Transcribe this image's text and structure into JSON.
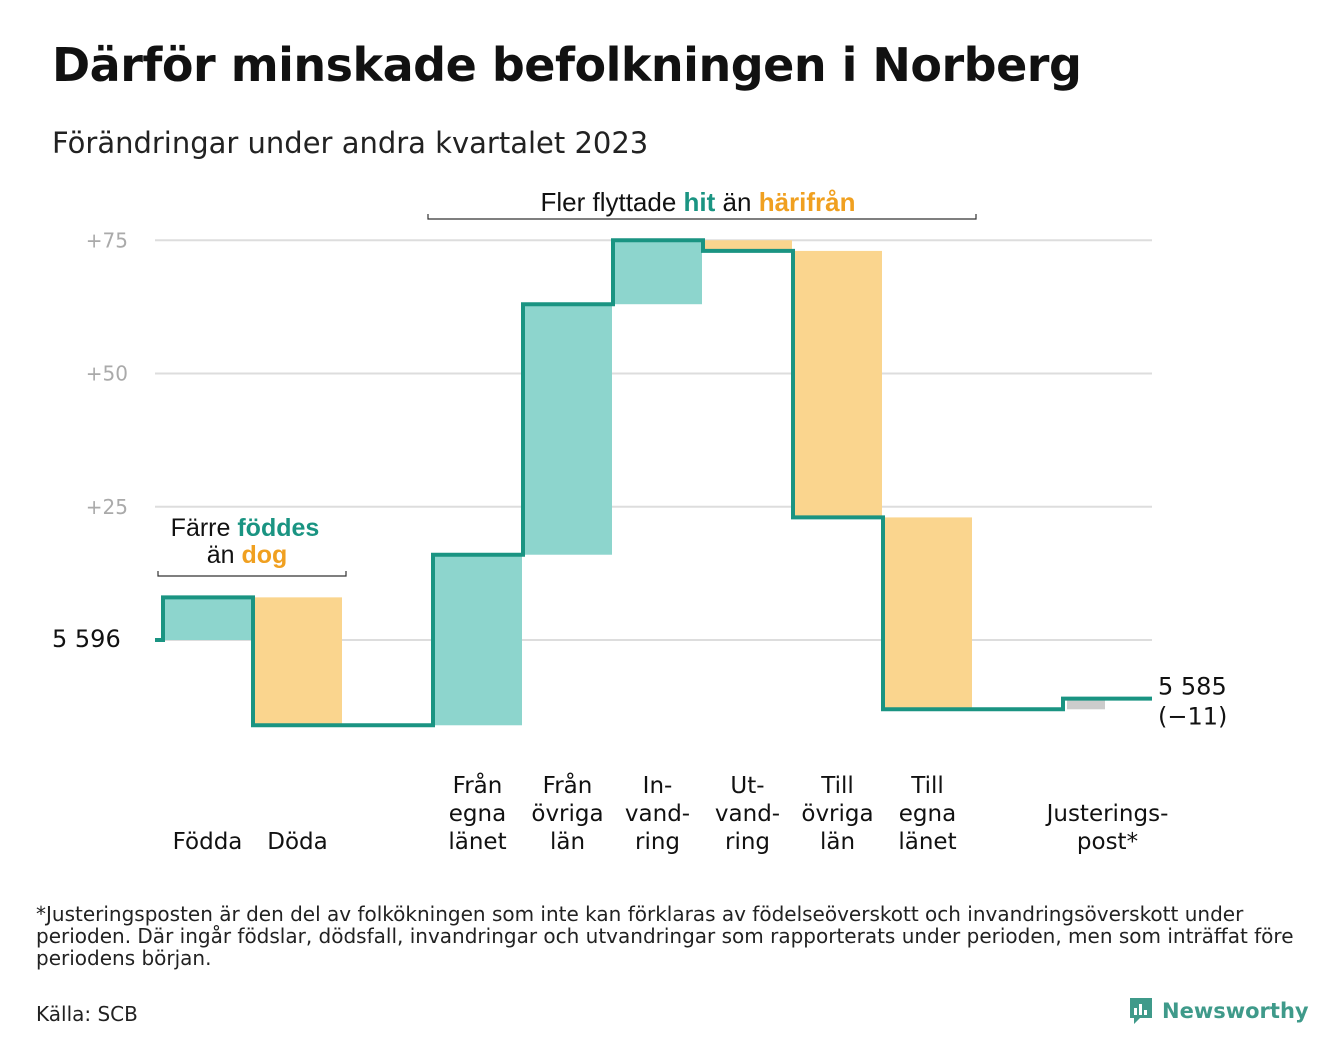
{
  "title": "Därför minskade befolkningen i Norberg",
  "subtitle": "Förändringar under andra kvartalet 2023",
  "footnote": "*Justeringsposten är den del av folkökningen som inte kan förklaras av födelseöverskott och invandringsöverskott under perioden. Där ingår födslar, dödsfall, invandringar och utvandringar som rapporterats under perioden, men som inträffat före periodens början.",
  "source": "Källa: SCB",
  "brand": "Newsworthy",
  "colors": {
    "increase": "#8dd5cd",
    "decrease": "#fad58e",
    "adjustment": "#cccccc",
    "line": "#1a9482",
    "teal_text": "#1a9482",
    "orange_text": "#f0a020",
    "grid": "#dddddd",
    "tick_text": "#aaaaaa"
  },
  "annotations": {
    "births": {
      "prefix": "Färre ",
      "highlight1": "föddes",
      "mid": "än ",
      "highlight2": "dog"
    },
    "migration": {
      "prefix": "Fler flyttade ",
      "highlight1": "hit",
      "mid": " än ",
      "highlight2": "härifrån"
    }
  },
  "chart_data": {
    "type": "waterfall",
    "start_value": 5596,
    "start_label": "5  596",
    "end_value": 5585,
    "end_label_1": "5 585",
    "end_label_2": "(−11)",
    "ytick_labels": [
      "+25",
      "+50",
      "+75"
    ],
    "yticks": [
      25,
      50,
      75
    ],
    "ylim": [
      -17,
      77
    ],
    "steps": [
      {
        "label": [
          "Födda"
        ],
        "delta": 8,
        "kind": "increase"
      },
      {
        "label": [
          "Döda"
        ],
        "delta": -24,
        "kind": "decrease"
      },
      {
        "label": [],
        "delta": 0,
        "kind": "none"
      },
      {
        "label": [
          "Från",
          "egna",
          "länet"
        ],
        "delta": 32,
        "kind": "increase"
      },
      {
        "label": [
          "Från",
          "övriga",
          "län"
        ],
        "delta": 47,
        "kind": "increase"
      },
      {
        "label": [
          "In-",
          "vand-",
          "ring"
        ],
        "delta": 12,
        "kind": "increase"
      },
      {
        "label": [
          "Ut-",
          "vand-",
          "ring"
        ],
        "delta": -2,
        "kind": "decrease"
      },
      {
        "label": [
          "Till",
          "övriga",
          "län"
        ],
        "delta": -50,
        "kind": "decrease"
      },
      {
        "label": [
          "Till",
          "egna",
          "länet"
        ],
        "delta": -36,
        "kind": "decrease"
      },
      {
        "label": [],
        "delta": 0,
        "kind": "none"
      },
      {
        "label": [
          "Justerings-",
          "post*"
        ],
        "delta": 2,
        "kind": "adjustment"
      }
    ]
  }
}
